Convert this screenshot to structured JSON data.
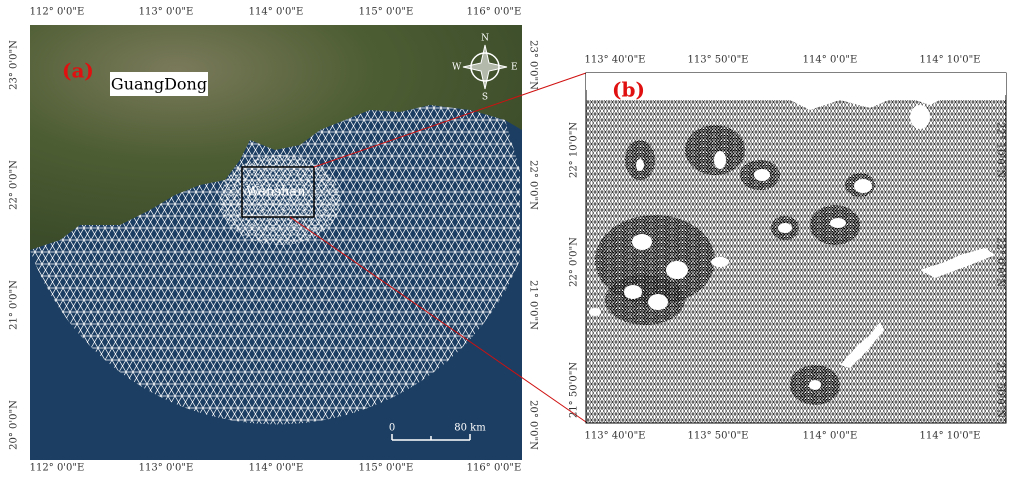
{
  "panel_a": {
    "label": "(a)",
    "region": "GuangDong",
    "site": "Wanshan",
    "compass": {
      "n": "N",
      "s": "S",
      "e": "E",
      "w": "W"
    },
    "scale": {
      "start": "0",
      "end": "80 km"
    },
    "lon_labels": [
      "112° 0'0\"E",
      "113° 0'0\"E",
      "114° 0'0\"E",
      "115° 0'0\"E",
      "116° 0'0\"E"
    ],
    "lat_labels": [
      "23° 0'0\"N",
      "22° 0'0\"N",
      "21° 0'0\"N",
      "20° 0'0\"N"
    ]
  },
  "panel_b": {
    "label": "(b)",
    "lon_labels": [
      "113° 40'0\"E",
      "113° 50'0\"E",
      "114° 0'0\"E",
      "114° 10'0\"E"
    ],
    "lat_labels": [
      "22° 10'0\"N",
      "22° 0'0\"N",
      "21° 50'0\"N"
    ]
  }
}
